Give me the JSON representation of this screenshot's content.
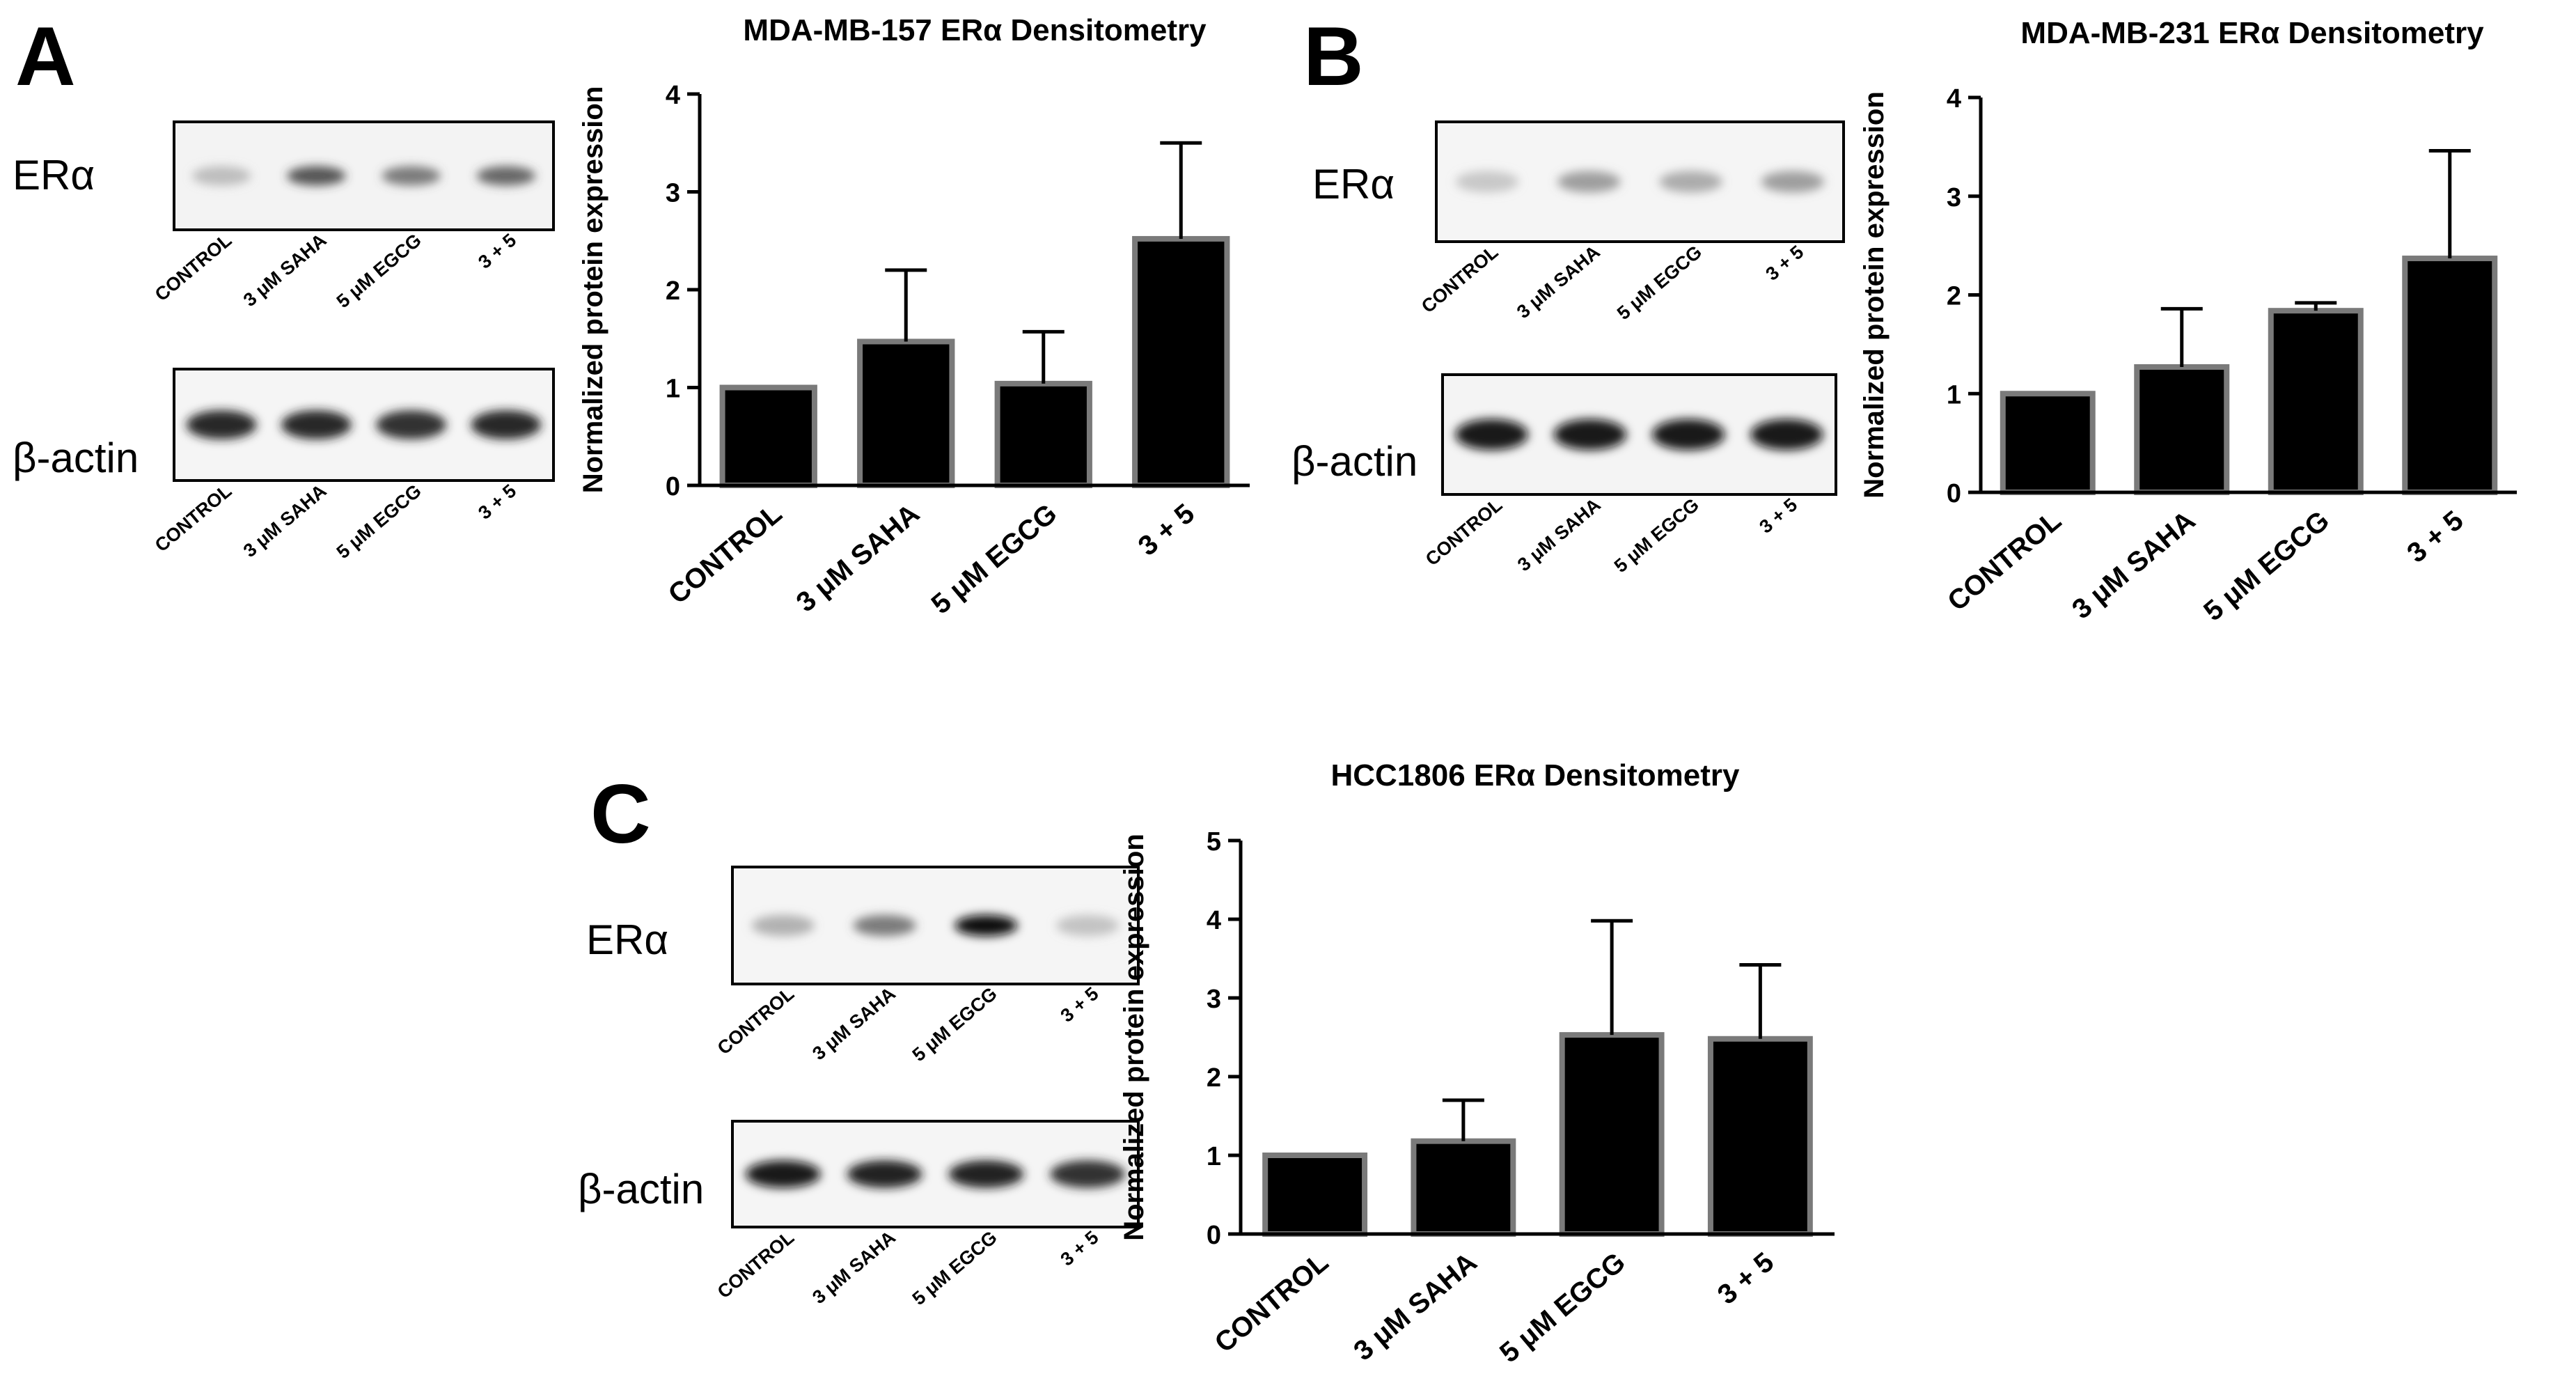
{
  "figure": {
    "panels": [
      {
        "letter": "A",
        "blots": [
          {
            "label": "ERα",
            "kind": "era",
            "intensities": [
              0.28,
              0.75,
              0.6,
              0.68
            ]
          },
          {
            "label": "β-actin",
            "kind": "actin",
            "intensities": [
              0.92,
              0.9,
              0.86,
              0.9
            ]
          }
        ],
        "lane_labels": [
          "CONTROL",
          "3 μM SAHA",
          "5 μM EGCG",
          "3 + 5"
        ]
      },
      {
        "letter": "B",
        "blots": [
          {
            "label": "ERα",
            "kind": "era",
            "intensities": [
              0.22,
              0.45,
              0.38,
              0.45
            ]
          },
          {
            "label": "β-actin",
            "kind": "actin",
            "intensities": [
              1.0,
              1.0,
              1.0,
              1.0
            ]
          }
        ],
        "lane_labels": [
          "CONTROL",
          "3 μM SAHA",
          "5 μM EGCG",
          "3 + 5"
        ]
      },
      {
        "letter": "C",
        "blots": [
          {
            "label": "ERα",
            "kind": "era",
            "intensities": [
              0.35,
              0.6,
              1.0,
              0.25
            ]
          },
          {
            "label": "β-actin",
            "kind": "actin",
            "intensities": [
              1.0,
              0.95,
              0.95,
              0.85
            ]
          }
        ],
        "lane_labels": [
          "CONTROL",
          "3 μM SAHA",
          "5 μM EGCG",
          "3 + 5"
        ]
      }
    ],
    "colors": {
      "bar_fill": "#000000",
      "bar_edge": "#7a7a7a",
      "axis": "#000000",
      "text": "#000000"
    }
  },
  "chart_data": [
    {
      "type": "bar",
      "title": "MDA-MB-157 ERα Densitometry",
      "ylabel": "Normalized protein expression",
      "xlabel": "",
      "categories": [
        "CONTROL",
        "3 μM SAHA",
        "5 μM EGCG",
        "3 + 5"
      ],
      "values": [
        1.0,
        1.47,
        1.04,
        2.52
      ],
      "errors": [
        0.0,
        0.73,
        0.53,
        0.98
      ],
      "ylim": [
        0,
        4
      ],
      "yticks": [
        "0",
        "1",
        "2",
        "3",
        "4"
      ]
    },
    {
      "type": "bar",
      "title": "MDA-MB-231 ERα Densitometry",
      "ylabel": "Normalized protein expression",
      "xlabel": "",
      "categories": [
        "CONTROL",
        "3 μM SAHA",
        "5 μM EGCG",
        "3 + 5"
      ],
      "values": [
        1.0,
        1.27,
        1.84,
        2.37
      ],
      "errors": [
        0.0,
        0.59,
        0.08,
        1.09
      ],
      "ylim": [
        0,
        4
      ],
      "yticks": [
        "0",
        "1",
        "2",
        "3",
        "4"
      ]
    },
    {
      "type": "bar",
      "title": "HCC1806 ERα Densitometry",
      "ylabel": "Normalized protein expression",
      "xlabel": "",
      "categories": [
        "CONTROL",
        "3 μM SAHA",
        "5 μM EGCG",
        "3 + 5"
      ],
      "values": [
        1.0,
        1.18,
        2.53,
        2.48
      ],
      "errors": [
        0.0,
        0.52,
        1.45,
        0.94
      ],
      "ylim": [
        0,
        5
      ],
      "yticks": [
        "0",
        "1",
        "2",
        "3",
        "4",
        "5"
      ]
    }
  ]
}
